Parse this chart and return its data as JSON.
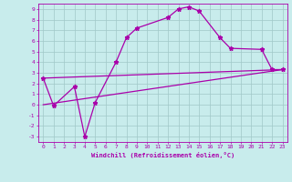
{
  "xlabel": "Windchill (Refroidissement éolien,°C)",
  "bg_color": "#c8ecec",
  "grid_color": "#a0c8c8",
  "line_color": "#aa00aa",
  "xlim": [
    -0.5,
    23.5
  ],
  "ylim": [
    -3.5,
    9.5
  ],
  "xticks": [
    0,
    1,
    2,
    3,
    4,
    5,
    6,
    7,
    8,
    9,
    10,
    11,
    12,
    13,
    14,
    15,
    16,
    17,
    18,
    19,
    20,
    21,
    22,
    23
  ],
  "yticks": [
    -3,
    -2,
    -1,
    0,
    1,
    2,
    3,
    4,
    5,
    6,
    7,
    8,
    9
  ],
  "series_main": {
    "x": [
      0,
      1,
      3,
      4,
      5,
      7,
      8,
      9,
      12,
      13,
      14,
      15,
      17,
      18,
      21,
      22,
      23
    ],
    "y": [
      2.5,
      -0.1,
      1.7,
      -3.0,
      0.2,
      4.0,
      6.3,
      7.2,
      8.2,
      9.0,
      9.2,
      8.8,
      6.3,
      5.3,
      5.2,
      3.3,
      3.3
    ]
  },
  "series_line1": {
    "x": [
      0,
      23
    ],
    "y": [
      2.5,
      3.3
    ]
  },
  "series_line2": {
    "x": [
      0,
      23
    ],
    "y": [
      0.0,
      3.3
    ]
  }
}
